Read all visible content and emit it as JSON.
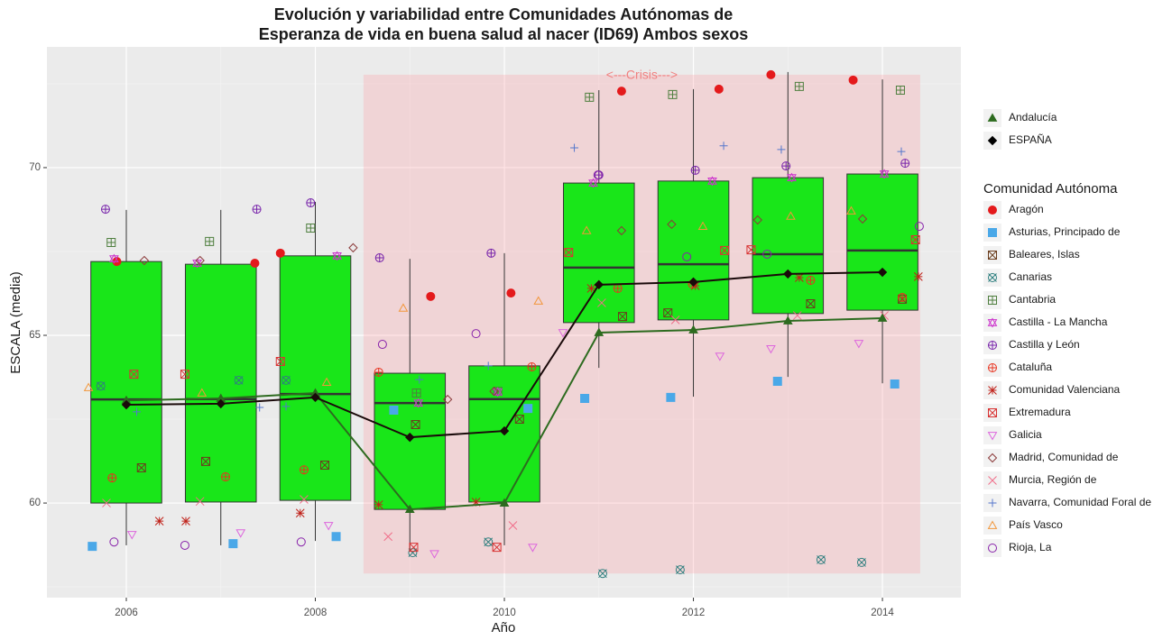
{
  "chart_data": {
    "type": "boxplot",
    "title": [
      "Evolución y variabilidad entre Comunidades Autónomas de",
      "Esperanza de vida en buena salud al nacer (ID69) Ambos sexos"
    ],
    "x_label": "Año",
    "y_label": "ESCALA (media)",
    "xlim": [
      2005.16,
      2014.83
    ],
    "xticks": [
      2006,
      2008,
      2010,
      2012,
      2014
    ],
    "x_minor_grid": [
      2007,
      2009,
      2011,
      2013
    ],
    "ylim": [
      57.18,
      73.6
    ],
    "yticks": [
      60,
      65,
      70
    ],
    "y_minor_grid": [
      57.5,
      62.5,
      67.5,
      72.5
    ],
    "grid": true,
    "x": [
      2006,
      2007,
      2008,
      2009,
      2010,
      2011,
      2012,
      2013,
      2014
    ],
    "boxes": {
      "color": "#19e619",
      "low": [
        58.74,
        58.74,
        58.87,
        58.6,
        58.74,
        64.03,
        63.17,
        63.76,
        63.57
      ],
      "q1": [
        60.0,
        60.03,
        60.08,
        59.81,
        60.03,
        65.38,
        65.46,
        65.65,
        65.75
      ],
      "median": [
        63.09,
        63.1,
        63.25,
        62.98,
        63.1,
        67.02,
        67.12,
        67.42,
        67.53
      ],
      "q3": [
        67.2,
        67.12,
        67.37,
        63.87,
        64.09,
        69.54,
        69.6,
        69.7,
        69.81
      ],
      "high": [
        68.74,
        68.74,
        68.98,
        67.28,
        67.45,
        72.31,
        72.34,
        72.85,
        72.63
      ]
    },
    "annotation": {
      "text": "<---Crisis--->",
      "xlim": [
        2008.51,
        2014.4
      ],
      "ylim": [
        57.9,
        72.77
      ],
      "color": "#f08080"
    },
    "lines": [
      {
        "name": "Andalucía",
        "color": "#2d6b1f",
        "shape": "triangle-filled",
        "values": [
          63.06,
          63.12,
          63.28,
          59.81,
          60.0,
          65.08,
          65.16,
          65.43,
          65.51
        ]
      },
      {
        "name": "ESPAÑA",
        "color": "#1a0a0a",
        "shape": "diamond-filled",
        "values": [
          62.93,
          62.96,
          63.15,
          61.96,
          62.15,
          66.51,
          66.59,
          66.83,
          66.88
        ]
      }
    ],
    "legend_title": "Comunidad Autónoma",
    "series": [
      {
        "name": "Aragón",
        "color": "#e41a1c",
        "shape": "circle-filled",
        "x": [
          2005.9,
          2007.36,
          2007.63,
          2009.22,
          2010.07,
          2011.24,
          2012.27,
          2012.82,
          2013.69
        ],
        "values": [
          67.2,
          67.15,
          67.45,
          66.16,
          66.26,
          72.28,
          72.34,
          72.77,
          72.61
        ]
      },
      {
        "name": "Asturias, Principado de",
        "color": "#4aa8e8",
        "shape": "square-filled",
        "x": [
          2005.64,
          2007.13,
          2008.22,
          2008.83,
          2010.25,
          2010.85,
          2011.76,
          2012.89,
          2014.13
        ],
        "values": [
          58.71,
          58.79,
          59.0,
          62.77,
          62.82,
          63.12,
          63.15,
          63.63,
          63.55
        ]
      },
      {
        "name": "Baleares, Islas",
        "color": "#6b3e1e",
        "shape": "square-x",
        "x": [
          2006.16,
          2006.84,
          2008.1,
          2009.06,
          2010.16,
          2011.25,
          2011.73,
          2013.24,
          2014.21
        ],
        "values": [
          61.05,
          61.24,
          61.13,
          62.34,
          62.5,
          65.56,
          65.67,
          65.94,
          66.08
        ]
      },
      {
        "name": "Canarias",
        "color": "#2f7f7f",
        "shape": "circle-x",
        "x": [
          2005.73,
          2007.19,
          2007.69,
          2009.03,
          2009.83,
          2011.04,
          2011.86,
          2013.35,
          2013.78
        ],
        "values": [
          63.49,
          63.66,
          63.66,
          58.52,
          58.84,
          57.9,
          58.01,
          58.31,
          58.23
        ]
      },
      {
        "name": "Cantabria",
        "color": "#4f7f3f",
        "shape": "square-plus",
        "x": [
          2005.84,
          2006.88,
          2007.95,
          2009.07,
          2009.93,
          2010.9,
          2011.78,
          2013.12,
          2014.19
        ],
        "values": [
          67.77,
          67.8,
          68.2,
          63.28,
          63.33,
          72.1,
          72.18,
          72.42,
          72.31
        ]
      },
      {
        "name": "Castilla - La Mancha",
        "color": "#cc33cc",
        "shape": "star6",
        "x": [
          2005.87,
          2006.75,
          2008.23,
          2009.09,
          2009.93,
          2010.94,
          2012.2,
          2013.04,
          2014.02
        ],
        "values": [
          67.28,
          67.15,
          67.37,
          62.98,
          63.31,
          69.54,
          69.6,
          69.7,
          69.81
        ]
      },
      {
        "name": "Castilla y León",
        "color": "#7722aa",
        "shape": "circle-plus",
        "x": [
          2005.78,
          2007.38,
          2007.95,
          2008.68,
          2009.86,
          2011.0,
          2012.02,
          2012.98,
          2014.24
        ],
        "values": [
          68.76,
          68.76,
          68.95,
          67.31,
          67.45,
          69.78,
          69.92,
          70.05,
          70.13
        ]
      },
      {
        "name": "Cataluña",
        "color": "#e8331f",
        "shape": "circle-plus",
        "x": [
          2005.85,
          2007.05,
          2007.88,
          2008.67,
          2010.29,
          2011.2,
          2011.99,
          2013.24,
          2014.21
        ],
        "values": [
          60.75,
          60.78,
          60.99,
          63.9,
          64.06,
          66.4,
          66.53,
          66.64,
          66.13
        ]
      },
      {
        "name": "Comunidad Valenciana",
        "color": "#c0221a",
        "shape": "asterisk",
        "x": [
          2006.35,
          2006.63,
          2007.84,
          2008.67,
          2009.7,
          2010.92,
          2012.02,
          2013.12,
          2014.38
        ],
        "values": [
          59.46,
          59.46,
          59.7,
          59.95,
          60.03,
          66.4,
          66.48,
          66.72,
          66.75
        ]
      },
      {
        "name": "Extremadura",
        "color": "#d83333",
        "shape": "square-x",
        "x": [
          2006.08,
          2006.62,
          2007.63,
          2009.04,
          2009.92,
          2010.68,
          2012.33,
          2012.61,
          2014.35
        ],
        "values": [
          63.84,
          63.84,
          64.22,
          58.68,
          58.68,
          67.47,
          67.53,
          67.55,
          67.85
        ]
      },
      {
        "name": "Galicia",
        "color": "#dd66dd",
        "shape": "triangle-down",
        "x": [
          2006.06,
          2007.21,
          2008.14,
          2009.26,
          2010.3,
          2010.62,
          2012.28,
          2012.82,
          2013.75
        ],
        "values": [
          59.06,
          59.11,
          59.33,
          58.49,
          58.68,
          65.08,
          64.38,
          64.6,
          64.76
        ]
      },
      {
        "name": "Madrid, Comunidad de",
        "color": "#8b3a3a",
        "shape": "diamond",
        "x": [
          2006.19,
          2006.78,
          2008.4,
          2009.4,
          2009.89,
          2011.24,
          2011.77,
          2012.68,
          2013.79
        ],
        "values": [
          67.23,
          67.23,
          67.61,
          63.09,
          63.33,
          68.12,
          68.31,
          68.44,
          68.47
        ]
      },
      {
        "name": "Murcia, Región de",
        "color": "#f06e8a",
        "shape": "x",
        "x": [
          2005.79,
          2006.78,
          2007.88,
          2008.77,
          2010.09,
          2011.03,
          2011.81,
          2013.1,
          2014.02
        ],
        "values": [
          60.0,
          60.05,
          60.11,
          59.0,
          59.33,
          65.97,
          65.46,
          65.59,
          65.59
        ]
      },
      {
        "name": "Navarra, Comunidad Foral de",
        "color": "#5577cc",
        "shape": "plus",
        "x": [
          2006.11,
          2007.41,
          2007.69,
          2009.1,
          2009.83,
          2010.74,
          2012.32,
          2012.93,
          2014.2
        ],
        "values": [
          62.72,
          62.85,
          62.88,
          63.68,
          64.09,
          70.59,
          70.65,
          70.54,
          70.48
        ]
      },
      {
        "name": "País Vasco",
        "color": "#f2963a",
        "shape": "triangle-up",
        "x": [
          2005.6,
          2006.8,
          2008.12,
          2008.93,
          2010.36,
          2010.87,
          2012.1,
          2013.03,
          2013.67
        ],
        "values": [
          63.44,
          63.28,
          63.6,
          65.81,
          66.02,
          68.12,
          68.25,
          68.55,
          68.71
        ]
      },
      {
        "name": "Rioja, La",
        "color": "#8822aa",
        "shape": "circle",
        "x": [
          2005.87,
          2006.62,
          2007.85,
          2008.71,
          2009.7,
          2010.99,
          2011.93,
          2012.78,
          2014.39
        ],
        "values": [
          58.84,
          58.74,
          58.84,
          64.73,
          65.05,
          69.78,
          67.34,
          67.42,
          68.25
        ]
      }
    ]
  }
}
